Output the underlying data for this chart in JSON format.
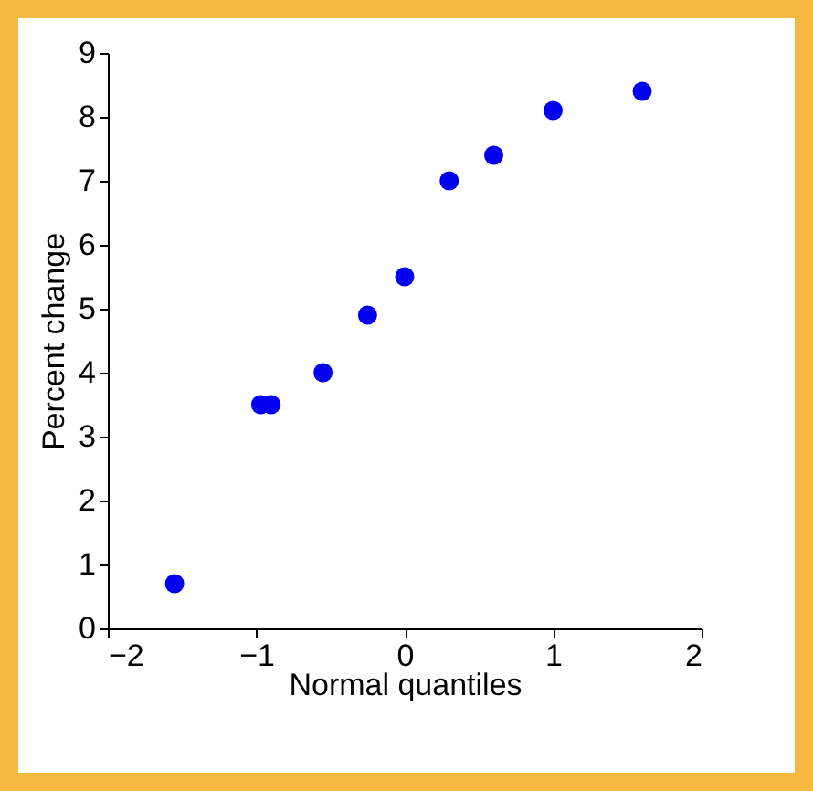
{
  "chart_data": {
    "type": "scatter",
    "xlabel": "Normal quantiles",
    "ylabel": "Percent change",
    "x": [
      -1.55,
      -0.97,
      -0.9,
      -0.55,
      -0.25,
      0.0,
      0.3,
      0.6,
      1.0,
      1.6
    ],
    "series": [
      {
        "color": "#0000ee",
        "values": [
          0.7,
          3.5,
          3.5,
          4.0,
          4.9,
          5.5,
          7.0,
          7.4,
          8.1,
          8.4
        ]
      }
    ],
    "xlim": [
      -2,
      2
    ],
    "xticks": [
      -2,
      -1,
      0,
      1,
      2
    ],
    "ylim": [
      0,
      9
    ],
    "yticks": [
      0,
      1,
      2,
      3,
      4,
      5,
      6,
      7,
      8,
      9
    ],
    "grid": false,
    "marker": "circle",
    "legend": false
  }
}
